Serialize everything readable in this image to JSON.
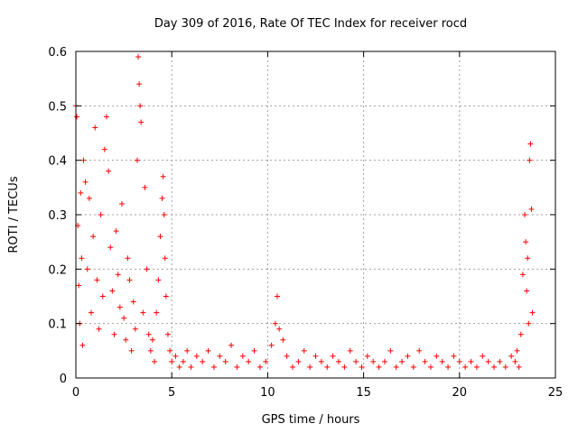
{
  "chart_data": {
    "type": "scatter",
    "title": "Day 309 of 2016, Rate Of TEC Index for receiver rocd",
    "xlabel": "GPS time / hours",
    "ylabel": "ROTI / TECUs",
    "xlim": [
      0,
      25
    ],
    "ylim": [
      0,
      0.6
    ],
    "x_ticks": [
      0,
      5,
      10,
      15,
      20,
      25
    ],
    "x_tick_labels": [
      "0",
      "5",
      "10",
      "15",
      "20",
      "25"
    ],
    "y_ticks": [
      0,
      0.1,
      0.2,
      0.3,
      0.4,
      0.5,
      0.6
    ],
    "y_tick_labels": [
      "0",
      "0.1",
      "0.2",
      "0.3",
      "0.4",
      "0.5",
      "0.6"
    ],
    "grid": true,
    "marker": "plus",
    "series": [
      {
        "name": "ROTI",
        "color": "#ff0000",
        "x": [
          0.0,
          0.05,
          0.1,
          0.15,
          0.2,
          0.25,
          0.3,
          0.35,
          0.4,
          0.5,
          0.6,
          0.7,
          0.8,
          0.9,
          1.0,
          1.1,
          1.2,
          1.3,
          1.4,
          1.5,
          1.6,
          1.7,
          1.8,
          1.9,
          2.0,
          2.1,
          2.2,
          2.3,
          2.4,
          2.5,
          2.6,
          2.7,
          2.8,
          2.9,
          3.0,
          3.1,
          3.2,
          3.25,
          3.3,
          3.35,
          3.4,
          3.5,
          3.6,
          3.7,
          3.8,
          3.9,
          4.0,
          4.1,
          4.2,
          4.3,
          4.4,
          4.5,
          4.55,
          4.6,
          4.65,
          4.7,
          4.8,
          4.9,
          5.0,
          5.2,
          5.4,
          5.6,
          5.8,
          6.0,
          6.3,
          6.6,
          6.9,
          7.2,
          7.5,
          7.8,
          8.1,
          8.4,
          8.7,
          9.0,
          9.3,
          9.6,
          9.9,
          10.2,
          10.4,
          10.5,
          10.6,
          10.8,
          11.0,
          11.3,
          11.6,
          11.9,
          12.2,
          12.5,
          12.8,
          13.1,
          13.4,
          13.7,
          14.0,
          14.3,
          14.6,
          14.9,
          15.2,
          15.5,
          15.8,
          16.1,
          16.4,
          16.7,
          17.0,
          17.3,
          17.6,
          17.9,
          18.2,
          18.5,
          18.8,
          19.1,
          19.4,
          19.7,
          20.0,
          20.3,
          20.6,
          20.9,
          21.2,
          21.5,
          21.8,
          22.1,
          22.4,
          22.7,
          22.9,
          23.0,
          23.1,
          23.2,
          23.3,
          23.4,
          23.45,
          23.5,
          23.55,
          23.6,
          23.65,
          23.7,
          23.75,
          23.8
        ],
        "y": [
          0.5,
          0.48,
          0.28,
          0.17,
          0.1,
          0.34,
          0.22,
          0.06,
          0.4,
          0.36,
          0.2,
          0.33,
          0.12,
          0.26,
          0.46,
          0.18,
          0.09,
          0.3,
          0.15,
          0.42,
          0.48,
          0.38,
          0.24,
          0.16,
          0.08,
          0.27,
          0.19,
          0.13,
          0.32,
          0.11,
          0.07,
          0.22,
          0.18,
          0.05,
          0.14,
          0.09,
          0.4,
          0.59,
          0.54,
          0.5,
          0.47,
          0.12,
          0.35,
          0.2,
          0.08,
          0.05,
          0.07,
          0.03,
          0.12,
          0.18,
          0.26,
          0.33,
          0.37,
          0.3,
          0.22,
          0.15,
          0.08,
          0.05,
          0.03,
          0.04,
          0.02,
          0.03,
          0.05,
          0.02,
          0.04,
          0.03,
          0.05,
          0.02,
          0.04,
          0.03,
          0.06,
          0.02,
          0.04,
          0.03,
          0.05,
          0.02,
          0.03,
          0.06,
          0.1,
          0.15,
          0.09,
          0.07,
          0.04,
          0.02,
          0.03,
          0.05,
          0.02,
          0.04,
          0.03,
          0.02,
          0.04,
          0.03,
          0.02,
          0.05,
          0.03,
          0.02,
          0.04,
          0.03,
          0.02,
          0.03,
          0.05,
          0.02,
          0.03,
          0.04,
          0.02,
          0.05,
          0.03,
          0.02,
          0.04,
          0.03,
          0.02,
          0.04,
          0.03,
          0.02,
          0.03,
          0.02,
          0.04,
          0.03,
          0.02,
          0.03,
          0.02,
          0.04,
          0.03,
          0.05,
          0.02,
          0.08,
          0.19,
          0.3,
          0.25,
          0.16,
          0.22,
          0.1,
          0.4,
          0.43,
          0.31,
          0.12
        ]
      }
    ]
  }
}
